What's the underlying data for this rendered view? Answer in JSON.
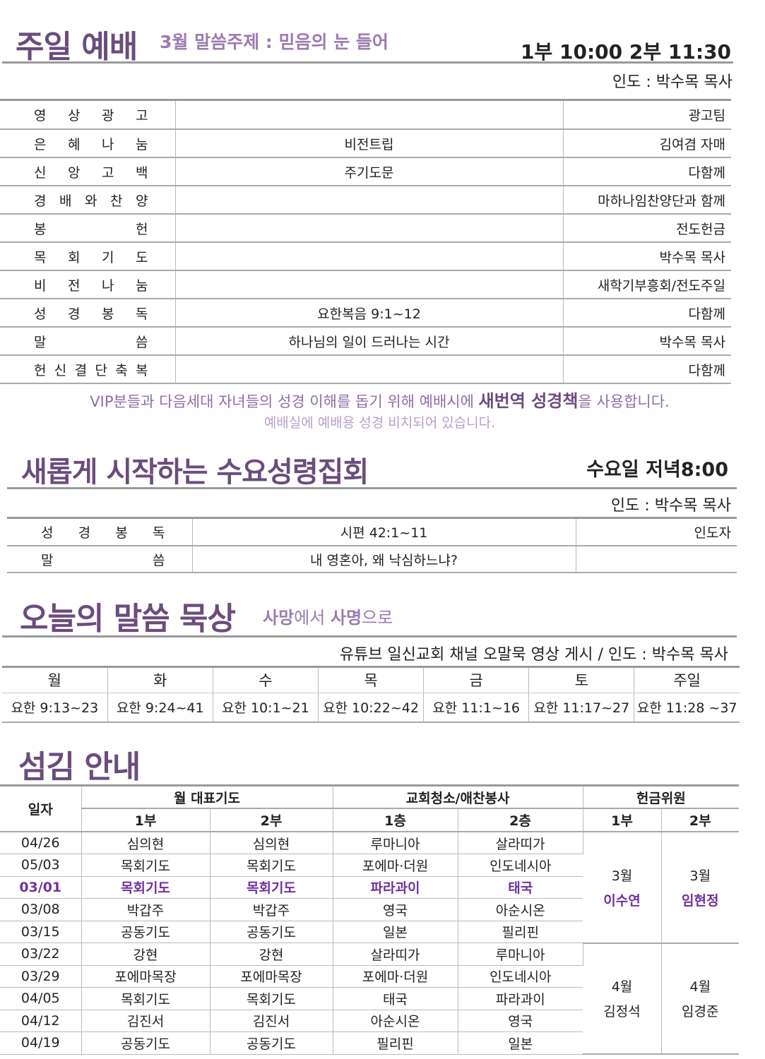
{
  "sunday": {
    "title": "주일 예배",
    "theme": "3월 말씀주제 :  믿음의 눈 들어",
    "times": "1부 10:00  2부 11:30",
    "leader": "인도 : 박수목 목사",
    "rows": [
      {
        "label": [
          "영",
          "상",
          "광",
          "고"
        ],
        "content": "",
        "person": "광고팀"
      },
      {
        "label": [
          "은",
          "혜",
          "나",
          "눔"
        ],
        "content": "비전트립",
        "person": "김여겸 자매"
      },
      {
        "label": [
          "신",
          "앙",
          "고",
          "백"
        ],
        "content": "주기도문",
        "person": "다함께"
      },
      {
        "label": [
          "경",
          "배",
          "와",
          "찬",
          "양"
        ],
        "content": "",
        "person": "마하나임찬양단과 함께"
      },
      {
        "label": [
          "봉",
          "헌"
        ],
        "content": "",
        "person": "전도헌금"
      },
      {
        "label": [
          "목",
          "회",
          "기",
          "도"
        ],
        "content": "",
        "person": "박수목 목사"
      },
      {
        "label": [
          "비",
          "전",
          "나",
          "눔"
        ],
        "content": "",
        "person": "새학기부흥회/전도주일"
      },
      {
        "label": [
          "성",
          "경",
          "봉",
          "독"
        ],
        "content": "요한복음  9:1~12",
        "person": "다함께"
      },
      {
        "label": [
          "말",
          "씀"
        ],
        "content": "하나님의 일이 드러나는 시간",
        "person": "박수목 목사"
      },
      {
        "label": [
          "헌",
          "신",
          "결",
          "단",
          "축",
          "복"
        ],
        "content": "",
        "person": "다함께"
      }
    ],
    "note_pre": "VIP분들과 다음세대 자녀들의 성경 이해를 돕기 위해 예배시에 ",
    "note_bold": "새번역 성경책",
    "note_post": "을 사용합니다.",
    "note2": "예배실에 예배용 성경 비치되어 있습니다."
  },
  "wednesday": {
    "title": "새롭게 시작하는 수요성령집회",
    "time": "수요일 저녁8:00",
    "leader": "인도 : 박수목 목사",
    "rows": [
      {
        "label": [
          "성",
          "경",
          "봉",
          "독"
        ],
        "content": "시편 42:1~11",
        "person": "인도자"
      },
      {
        "label": [
          "말",
          "씀"
        ],
        "content": "내 영혼아, 왜 낙심하느냐?",
        "person": ""
      }
    ]
  },
  "meditation": {
    "title": "오늘의 말씀 묵상",
    "sub_a": "사망",
    "sub_b": "에서 ",
    "sub_c": "사명",
    "sub_d": "으로",
    "info": "유튜브 일신교회 채널 오말묵 영상 게시 / 인도 : 박수목 목사",
    "days": [
      "월",
      "화",
      "수",
      "목",
      "금",
      "토",
      "주일"
    ],
    "passages": [
      "요한  9:13~23",
      "요한  9:24~41",
      "요한  10:1~21",
      "요한 10:22~42",
      "요한  11:1~16",
      "요한 11:17~27",
      "요한 11:28 ~37"
    ]
  },
  "service": {
    "title": "섬김 안내",
    "h_date": "일자",
    "h_prayer": "월 대표기도",
    "h_clean": "교회청소/애찬봉사",
    "h_offering": "헌금위원",
    "sub": [
      "1부",
      "2부",
      "1층",
      "2층",
      "1부",
      "2부"
    ],
    "rows": [
      [
        "04/26",
        "심의현",
        "심의현",
        "루마니아",
        "살라띠가"
      ],
      [
        "05/03",
        "목회기도",
        "목회기도",
        "포에마·더원",
        "인도네시아"
      ],
      [
        "03/01",
        "목회기도",
        "목회기도",
        "파라과이",
        "태국"
      ],
      [
        "03/08",
        "박갑주",
        "박갑주",
        "영국",
        "아순시온"
      ],
      [
        "03/15",
        "공동기도",
        "공동기도",
        "일본",
        "필리핀"
      ],
      [
        "03/22",
        "강현",
        "강현",
        "살라띠가",
        "루마니아"
      ],
      [
        "03/29",
        "포에마목장",
        "포에마목장",
        "포에마·더원",
        "인도네시아"
      ],
      [
        "04/05",
        "목회기도",
        "목회기도",
        "태국",
        "파라과이"
      ],
      [
        "04/12",
        "김진서",
        "김진서",
        "아순시온",
        "영국"
      ],
      [
        "04/19",
        "공동기도",
        "공동기도",
        "필리핀",
        "일본"
      ]
    ],
    "highlight_row": 2,
    "offering": [
      {
        "month": "3월",
        "p1": "이수연",
        "p2": "임현정"
      },
      {
        "month": "4월",
        "p1": "김정석",
        "p2": "임경준"
      }
    ]
  },
  "colors": {
    "title": "#6b4c7e",
    "highlight": "#7030a0",
    "subtitle": "#9b7bb0"
  }
}
